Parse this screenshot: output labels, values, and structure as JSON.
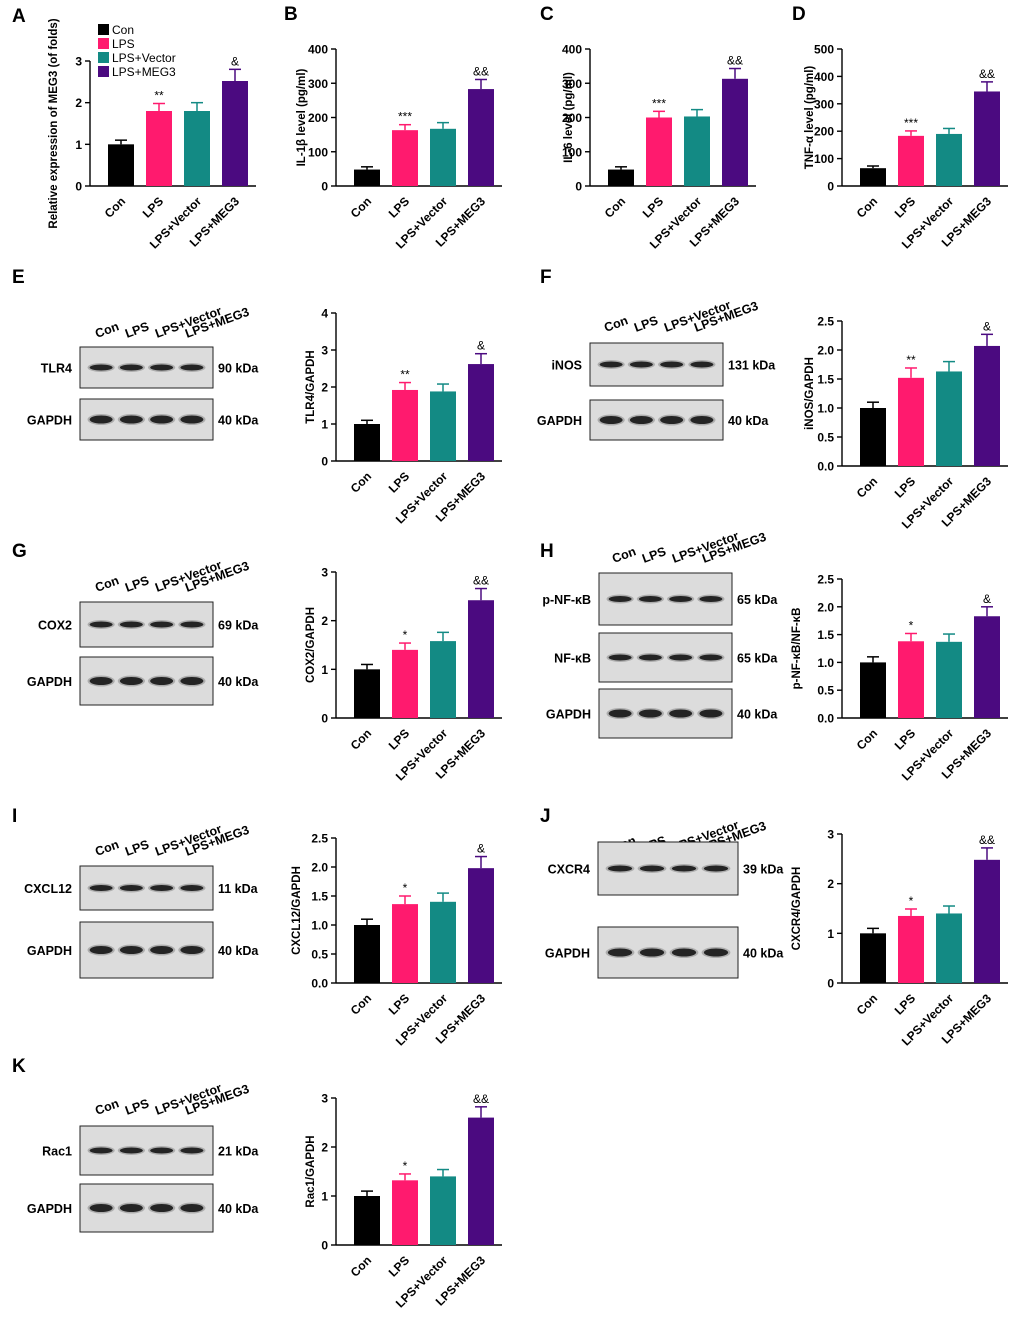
{
  "groups": [
    "Con",
    "LPS",
    "LPS+Vector",
    "LPS+MEG3"
  ],
  "colors": [
    "#000000",
    "#ff1a6e",
    "#138a84",
    "#4b0a80"
  ],
  "legend": [
    "Con",
    "LPS",
    "LPS+Vector",
    "LPS+MEG3"
  ],
  "chart_data": [
    {
      "panel": "A",
      "type": "bar",
      "title": "",
      "xlabel": "",
      "ylabel": "Relative expression of  MEG3 (of folds)",
      "categories": [
        "Con",
        "LPS",
        "LPS+Vector",
        "LPS+MEG3"
      ],
      "values": [
        1.0,
        1.8,
        1.8,
        2.52
      ],
      "errors": [
        0.1,
        0.18,
        0.2,
        0.28
      ],
      "ylim": [
        0,
        3
      ],
      "ticks": [
        "0",
        "1",
        "2",
        "3"
      ],
      "annotations": [
        "",
        "**",
        "",
        "&"
      ]
    },
    {
      "panel": "B",
      "type": "bar",
      "title": "",
      "xlabel": "",
      "ylabel": "IL-1β level (pg/ml)",
      "categories": [
        "Con",
        "LPS",
        "LPS+Vector",
        "LPS+MEG3"
      ],
      "values": [
        48,
        163,
        167,
        283
      ],
      "errors": [
        8,
        16,
        18,
        28
      ],
      "ylim": [
        0,
        400
      ],
      "ticks": [
        "0",
        "100",
        "200",
        "300",
        "400"
      ],
      "annotations": [
        "",
        "***",
        "",
        "&&"
      ]
    },
    {
      "panel": "C",
      "type": "bar",
      "title": "",
      "xlabel": "",
      "ylabel": "IL-6 level (pg/ml)",
      "categories": [
        "Con",
        "LPS",
        "LPS+Vector",
        "LPS+MEG3"
      ],
      "values": [
        48,
        200,
        203,
        313
      ],
      "errors": [
        8,
        18,
        20,
        30
      ],
      "ylim": [
        0,
        400
      ],
      "ticks": [
        "0",
        "100",
        "200",
        "300",
        "400"
      ],
      "annotations": [
        "",
        "***",
        "",
        "&&"
      ]
    },
    {
      "panel": "D",
      "type": "bar",
      "title": "",
      "xlabel": "",
      "ylabel": "TNF-α level (pg/ml)",
      "categories": [
        "Con",
        "LPS",
        "LPS+Vector",
        "LPS+MEG3"
      ],
      "values": [
        65,
        183,
        190,
        345
      ],
      "errors": [
        8,
        18,
        20,
        35
      ],
      "ylim": [
        0,
        500
      ],
      "ticks": [
        "0",
        "100",
        "200",
        "300",
        "400",
        "500"
      ],
      "annotations": [
        "",
        "***",
        "",
        "&&"
      ]
    },
    {
      "panel": "E",
      "type": "bar",
      "title": "",
      "xlabel": "",
      "ylabel": "TLR4/GAPDH",
      "categories": [
        "Con",
        "LPS",
        "LPS+Vector",
        "LPS+MEG3"
      ],
      "values": [
        1.0,
        1.92,
        1.88,
        2.62
      ],
      "errors": [
        0.1,
        0.2,
        0.2,
        0.28
      ],
      "ylim": [
        0,
        4
      ],
      "ticks": [
        "0",
        "1",
        "2",
        "3",
        "4"
      ],
      "annotations": [
        "",
        "**",
        "",
        "&"
      ]
    },
    {
      "panel": "F",
      "type": "bar",
      "title": "",
      "xlabel": "",
      "ylabel": "iNOS/GAPDH",
      "categories": [
        "Con",
        "LPS",
        "LPS+Vector",
        "LPS+MEG3"
      ],
      "values": [
        1.0,
        1.52,
        1.63,
        2.07
      ],
      "errors": [
        0.1,
        0.17,
        0.17,
        0.2
      ],
      "ylim": [
        0,
        2.5
      ],
      "ticks": [
        "0.0",
        "0.5",
        "1.0",
        "1.5",
        "2.0",
        "2.5"
      ],
      "annotations": [
        "",
        "**",
        "",
        "&"
      ]
    },
    {
      "panel": "G",
      "type": "bar",
      "title": "",
      "xlabel": "",
      "ylabel": "COX2/GAPDH",
      "categories": [
        "Con",
        "LPS",
        "LPS+Vector",
        "LPS+MEG3"
      ],
      "values": [
        1.0,
        1.4,
        1.58,
        2.42
      ],
      "errors": [
        0.1,
        0.14,
        0.18,
        0.24
      ],
      "ylim": [
        0,
        3
      ],
      "ticks": [
        "0",
        "1",
        "2",
        "3"
      ],
      "annotations": [
        "",
        "*",
        "",
        "&&"
      ]
    },
    {
      "panel": "H",
      "type": "bar",
      "title": "",
      "xlabel": "",
      "ylabel": "p-NF-κB/NF-κB",
      "categories": [
        "Con",
        "LPS",
        "LPS+Vector",
        "LPS+MEG3"
      ],
      "values": [
        1.0,
        1.38,
        1.37,
        1.83
      ],
      "errors": [
        0.1,
        0.14,
        0.14,
        0.17
      ],
      "ylim": [
        0,
        2.5
      ],
      "ticks": [
        "0.0",
        "0.5",
        "1.0",
        "1.5",
        "2.0",
        "2.5"
      ],
      "annotations": [
        "",
        "*",
        "",
        "&"
      ]
    },
    {
      "panel": "I",
      "type": "bar",
      "title": "",
      "xlabel": "",
      "ylabel": "CXCL12/GAPDH",
      "categories": [
        "Con",
        "LPS",
        "LPS+Vector",
        "LPS+MEG3"
      ],
      "values": [
        1.0,
        1.36,
        1.4,
        1.98
      ],
      "errors": [
        0.1,
        0.14,
        0.15,
        0.2
      ],
      "ylim": [
        0,
        2.5
      ],
      "ticks": [
        "0.0",
        "0.5",
        "1.0",
        "1.5",
        "2.0",
        "2.5"
      ],
      "annotations": [
        "",
        "*",
        "",
        "&"
      ]
    },
    {
      "panel": "J",
      "type": "bar",
      "title": "",
      "xlabel": "",
      "ylabel": "CXCR4/GAPDH",
      "categories": [
        "Con",
        "LPS",
        "LPS+Vector",
        "LPS+MEG3"
      ],
      "values": [
        1.0,
        1.35,
        1.4,
        2.48
      ],
      "errors": [
        0.1,
        0.14,
        0.15,
        0.24
      ],
      "ylim": [
        0,
        3
      ],
      "ticks": [
        "0",
        "1",
        "2",
        "3"
      ],
      "annotations": [
        "",
        "*",
        "",
        "&&"
      ]
    },
    {
      "panel": "K",
      "type": "bar",
      "title": "",
      "xlabel": "",
      "ylabel": "Rac1/GAPDH",
      "categories": [
        "Con",
        "LPS",
        "LPS+Vector",
        "LPS+MEG3"
      ],
      "values": [
        1.0,
        1.32,
        1.4,
        2.6
      ],
      "errors": [
        0.1,
        0.13,
        0.14,
        0.22
      ],
      "ylim": [
        0,
        3
      ],
      "ticks": [
        "0",
        "1",
        "2",
        "3"
      ],
      "annotations": [
        "",
        "*",
        "",
        "&&"
      ]
    }
  ],
  "blots": [
    {
      "panel": "E",
      "lanes": [
        "Con",
        "LPS",
        "LPS+Vector",
        "LPS+MEG3"
      ],
      "rows": [
        {
          "protein": "TLR4",
          "size": "90 kDa"
        },
        {
          "protein": "GAPDH",
          "size": "40 kDa"
        }
      ]
    },
    {
      "panel": "F",
      "lanes": [
        "Con",
        "LPS",
        "LPS+Vector",
        "LPS+MEG3"
      ],
      "rows": [
        {
          "protein": "iNOS",
          "size": "131 kDa"
        },
        {
          "protein": "GAPDH",
          "size": "40 kDa"
        }
      ]
    },
    {
      "panel": "G",
      "lanes": [
        "Con",
        "LPS",
        "LPS+Vector",
        "LPS+MEG3"
      ],
      "rows": [
        {
          "protein": "COX2",
          "size": "69 kDa"
        },
        {
          "protein": "GAPDH",
          "size": "40 kDa"
        }
      ]
    },
    {
      "panel": "H",
      "lanes": [
        "Con",
        "LPS",
        "LPS+Vector",
        "LPS+MEG3"
      ],
      "rows": [
        {
          "protein": "p-NF-κB",
          "size": "65 kDa"
        },
        {
          "protein": "NF-κB",
          "size": "65 kDa"
        },
        {
          "protein": "GAPDH",
          "size": "40 kDa"
        }
      ]
    },
    {
      "panel": "I",
      "lanes": [
        "Con",
        "LPS",
        "LPS+Vector",
        "LPS+MEG3"
      ],
      "rows": [
        {
          "protein": "CXCL12",
          "size": "11 kDa"
        },
        {
          "protein": "GAPDH",
          "size": "40 kDa"
        }
      ]
    },
    {
      "panel": "J",
      "lanes": [
        "Con",
        "LPS",
        "LPS+Vector",
        "LPS+MEG3"
      ],
      "rows": [
        {
          "protein": "CXCR4",
          "size": "39 kDa"
        },
        {
          "protein": "GAPDH",
          "size": "40 kDa"
        }
      ]
    },
    {
      "panel": "K",
      "lanes": [
        "Con",
        "LPS",
        "LPS+Vector",
        "LPS+MEG3"
      ],
      "rows": [
        {
          "protein": "Rac1",
          "size": "21 kDa"
        },
        {
          "protein": "GAPDH",
          "size": "40 kDa"
        }
      ]
    }
  ]
}
